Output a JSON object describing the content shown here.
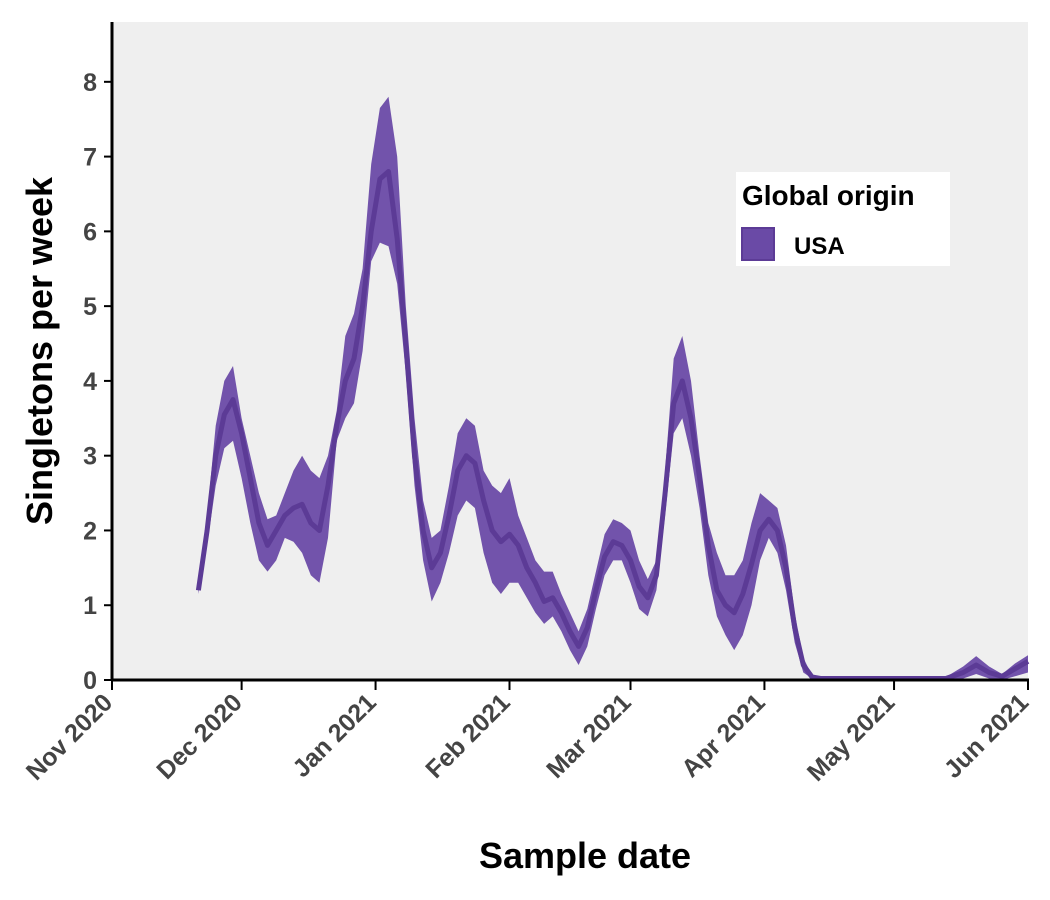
{
  "chart_data": {
    "type": "area",
    "title": "",
    "xlabel": "Sample date",
    "ylabel": "Singletons per week",
    "xlim": [
      "2020-11-01",
      "2021-06-01"
    ],
    "ylim": [
      0,
      8.8
    ],
    "x_ticks": [
      {
        "date": "2020-11-01",
        "label": "Nov 2020"
      },
      {
        "date": "2020-12-01",
        "label": "Dec 2020"
      },
      {
        "date": "2021-01-01",
        "label": "Jan 2021"
      },
      {
        "date": "2021-02-01",
        "label": "Feb 2021"
      },
      {
        "date": "2021-03-01",
        "label": "Mar 2021"
      },
      {
        "date": "2021-04-01",
        "label": "Apr 2021"
      },
      {
        "date": "2021-05-01",
        "label": "May 2021"
      },
      {
        "date": "2021-06-01",
        "label": "Jun 2021"
      }
    ],
    "y_ticks": [
      0,
      1,
      2,
      3,
      4,
      5,
      6,
      7,
      8
    ],
    "grid": false,
    "background_color": "#efefef",
    "legend": {
      "title": "Global origin",
      "position": "top-right"
    },
    "series": [
      {
        "name": "USA",
        "color": "#5c3b96",
        "band_color": "#6a4aa6",
        "points": [
          {
            "x": "2020-11-21",
            "y": 1.2,
            "lo": 1.15,
            "hi": 1.3
          },
          {
            "x": "2020-11-23",
            "y": 2.0,
            "lo": 1.8,
            "hi": 2.2
          },
          {
            "x": "2020-11-25",
            "y": 3.0,
            "lo": 2.6,
            "hi": 3.4
          },
          {
            "x": "2020-11-27",
            "y": 3.55,
            "lo": 3.1,
            "hi": 4.0
          },
          {
            "x": "2020-11-29",
            "y": 3.75,
            "lo": 3.2,
            "hi": 4.2
          },
          {
            "x": "2020-12-01",
            "y": 3.3,
            "lo": 2.7,
            "hi": 3.5
          },
          {
            "x": "2020-12-03",
            "y": 2.7,
            "lo": 2.1,
            "hi": 3.0
          },
          {
            "x": "2020-12-05",
            "y": 2.1,
            "lo": 1.6,
            "hi": 2.5
          },
          {
            "x": "2020-12-07",
            "y": 1.8,
            "lo": 1.45,
            "hi": 2.15
          },
          {
            "x": "2020-12-09",
            "y": 2.0,
            "lo": 1.6,
            "hi": 2.2
          },
          {
            "x": "2020-12-11",
            "y": 2.2,
            "lo": 1.9,
            "hi": 2.5
          },
          {
            "x": "2020-12-13",
            "y": 2.3,
            "lo": 1.85,
            "hi": 2.8
          },
          {
            "x": "2020-12-15",
            "y": 2.35,
            "lo": 1.7,
            "hi": 3.0
          },
          {
            "x": "2020-12-17",
            "y": 2.1,
            "lo": 1.4,
            "hi": 2.8
          },
          {
            "x": "2020-12-19",
            "y": 2.0,
            "lo": 1.3,
            "hi": 2.7
          },
          {
            "x": "2020-12-21",
            "y": 2.6,
            "lo": 1.9,
            "hi": 3.0
          },
          {
            "x": "2020-12-23",
            "y": 3.4,
            "lo": 3.2,
            "hi": 3.6
          },
          {
            "x": "2020-12-25",
            "y": 4.0,
            "lo": 3.5,
            "hi": 4.6
          },
          {
            "x": "2020-12-27",
            "y": 4.3,
            "lo": 3.7,
            "hi": 4.9
          },
          {
            "x": "2020-12-29",
            "y": 5.0,
            "lo": 4.4,
            "hi": 5.5
          },
          {
            "x": "2020-12-31",
            "y": 6.0,
            "lo": 5.6,
            "hi": 6.9
          },
          {
            "x": "2021-01-02",
            "y": 6.7,
            "lo": 5.85,
            "hi": 7.65
          },
          {
            "x": "2021-01-04",
            "y": 6.8,
            "lo": 5.8,
            "hi": 7.8
          },
          {
            "x": "2021-01-06",
            "y": 5.9,
            "lo": 5.3,
            "hi": 7.0
          },
          {
            "x": "2021-01-08",
            "y": 4.5,
            "lo": 4.1,
            "hi": 5.0
          },
          {
            "x": "2021-01-10",
            "y": 3.0,
            "lo": 2.6,
            "hi": 3.5
          },
          {
            "x": "2021-01-12",
            "y": 2.0,
            "lo": 1.6,
            "hi": 2.4
          },
          {
            "x": "2021-01-14",
            "y": 1.5,
            "lo": 1.05,
            "hi": 1.9
          },
          {
            "x": "2021-01-16",
            "y": 1.7,
            "lo": 1.3,
            "hi": 2.0
          },
          {
            "x": "2021-01-18",
            "y": 2.2,
            "lo": 1.7,
            "hi": 2.6
          },
          {
            "x": "2021-01-20",
            "y": 2.8,
            "lo": 2.2,
            "hi": 3.3
          },
          {
            "x": "2021-01-22",
            "y": 3.0,
            "lo": 2.4,
            "hi": 3.5
          },
          {
            "x": "2021-01-24",
            "y": 2.9,
            "lo": 2.3,
            "hi": 3.4
          },
          {
            "x": "2021-01-26",
            "y": 2.4,
            "lo": 1.7,
            "hi": 2.8
          },
          {
            "x": "2021-01-28",
            "y": 2.0,
            "lo": 1.3,
            "hi": 2.6
          },
          {
            "x": "2021-01-30",
            "y": 1.85,
            "lo": 1.15,
            "hi": 2.5
          },
          {
            "x": "2021-02-01",
            "y": 1.95,
            "lo": 1.3,
            "hi": 2.7
          },
          {
            "x": "2021-02-03",
            "y": 1.8,
            "lo": 1.3,
            "hi": 2.2
          },
          {
            "x": "2021-02-05",
            "y": 1.5,
            "lo": 1.1,
            "hi": 1.9
          },
          {
            "x": "2021-02-07",
            "y": 1.3,
            "lo": 0.9,
            "hi": 1.6
          },
          {
            "x": "2021-02-09",
            "y": 1.05,
            "lo": 0.75,
            "hi": 1.45
          },
          {
            "x": "2021-02-11",
            "y": 1.1,
            "lo": 0.85,
            "hi": 1.45
          },
          {
            "x": "2021-02-13",
            "y": 0.9,
            "lo": 0.65,
            "hi": 1.15
          },
          {
            "x": "2021-02-15",
            "y": 0.65,
            "lo": 0.4,
            "hi": 0.9
          },
          {
            "x": "2021-02-17",
            "y": 0.45,
            "lo": 0.2,
            "hi": 0.65
          },
          {
            "x": "2021-02-19",
            "y": 0.7,
            "lo": 0.45,
            "hi": 0.95
          },
          {
            "x": "2021-02-21",
            "y": 1.2,
            "lo": 0.95,
            "hi": 1.45
          },
          {
            "x": "2021-02-23",
            "y": 1.65,
            "lo": 1.4,
            "hi": 1.95
          },
          {
            "x": "2021-02-25",
            "y": 1.85,
            "lo": 1.6,
            "hi": 2.15
          },
          {
            "x": "2021-02-27",
            "y": 1.8,
            "lo": 1.6,
            "hi": 2.1
          },
          {
            "x": "2021-03-01",
            "y": 1.6,
            "lo": 1.3,
            "hi": 2.0
          },
          {
            "x": "2021-03-03",
            "y": 1.25,
            "lo": 0.95,
            "hi": 1.6
          },
          {
            "x": "2021-03-05",
            "y": 1.1,
            "lo": 0.85,
            "hi": 1.35
          },
          {
            "x": "2021-03-07",
            "y": 1.4,
            "lo": 1.2,
            "hi": 1.6
          },
          {
            "x": "2021-03-09",
            "y": 2.5,
            "lo": 2.2,
            "hi": 2.8
          },
          {
            "x": "2021-03-11",
            "y": 3.7,
            "lo": 3.3,
            "hi": 4.3
          },
          {
            "x": "2021-03-13",
            "y": 4.0,
            "lo": 3.5,
            "hi": 4.6
          },
          {
            "x": "2021-03-15",
            "y": 3.5,
            "lo": 3.0,
            "hi": 4.0
          },
          {
            "x": "2021-03-17",
            "y": 2.7,
            "lo": 2.3,
            "hi": 3.0
          },
          {
            "x": "2021-03-19",
            "y": 1.8,
            "lo": 1.4,
            "hi": 2.1
          },
          {
            "x": "2021-03-21",
            "y": 1.2,
            "lo": 0.85,
            "hi": 1.7
          },
          {
            "x": "2021-03-23",
            "y": 1.0,
            "lo": 0.6,
            "hi": 1.4
          },
          {
            "x": "2021-03-25",
            "y": 0.9,
            "lo": 0.4,
            "hi": 1.4
          },
          {
            "x": "2021-03-27",
            "y": 1.15,
            "lo": 0.6,
            "hi": 1.6
          },
          {
            "x": "2021-03-29",
            "y": 1.55,
            "lo": 1.0,
            "hi": 2.1
          },
          {
            "x": "2021-03-31",
            "y": 2.0,
            "lo": 1.6,
            "hi": 2.5
          },
          {
            "x": "2021-04-02",
            "y": 2.15,
            "lo": 1.9,
            "hi": 2.4
          },
          {
            "x": "2021-04-04",
            "y": 2.0,
            "lo": 1.7,
            "hi": 2.3
          },
          {
            "x": "2021-04-06",
            "y": 1.5,
            "lo": 1.2,
            "hi": 1.8
          },
          {
            "x": "2021-04-08",
            "y": 0.7,
            "lo": 0.5,
            "hi": 0.9
          },
          {
            "x": "2021-04-10",
            "y": 0.2,
            "lo": 0.1,
            "hi": 0.3
          },
          {
            "x": "2021-04-12",
            "y": 0.04,
            "lo": 0.02,
            "hi": 0.06
          },
          {
            "x": "2021-04-14",
            "y": 0.02,
            "lo": 0.0,
            "hi": 0.04
          },
          {
            "x": "2021-05-01",
            "y": 0.02,
            "lo": 0.0,
            "hi": 0.04
          },
          {
            "x": "2021-05-13",
            "y": 0.02,
            "lo": 0.0,
            "hi": 0.04
          },
          {
            "x": "2021-05-17",
            "y": 0.1,
            "lo": 0.02,
            "hi": 0.18
          },
          {
            "x": "2021-05-20",
            "y": 0.2,
            "lo": 0.08,
            "hi": 0.32
          },
          {
            "x": "2021-05-23",
            "y": 0.1,
            "lo": 0.02,
            "hi": 0.18
          },
          {
            "x": "2021-05-26",
            "y": 0.05,
            "lo": 0.0,
            "hi": 0.08
          },
          {
            "x": "2021-05-29",
            "y": 0.15,
            "lo": 0.05,
            "hi": 0.22
          },
          {
            "x": "2021-06-01",
            "y": 0.25,
            "lo": 0.1,
            "hi": 0.33
          }
        ]
      }
    ]
  }
}
